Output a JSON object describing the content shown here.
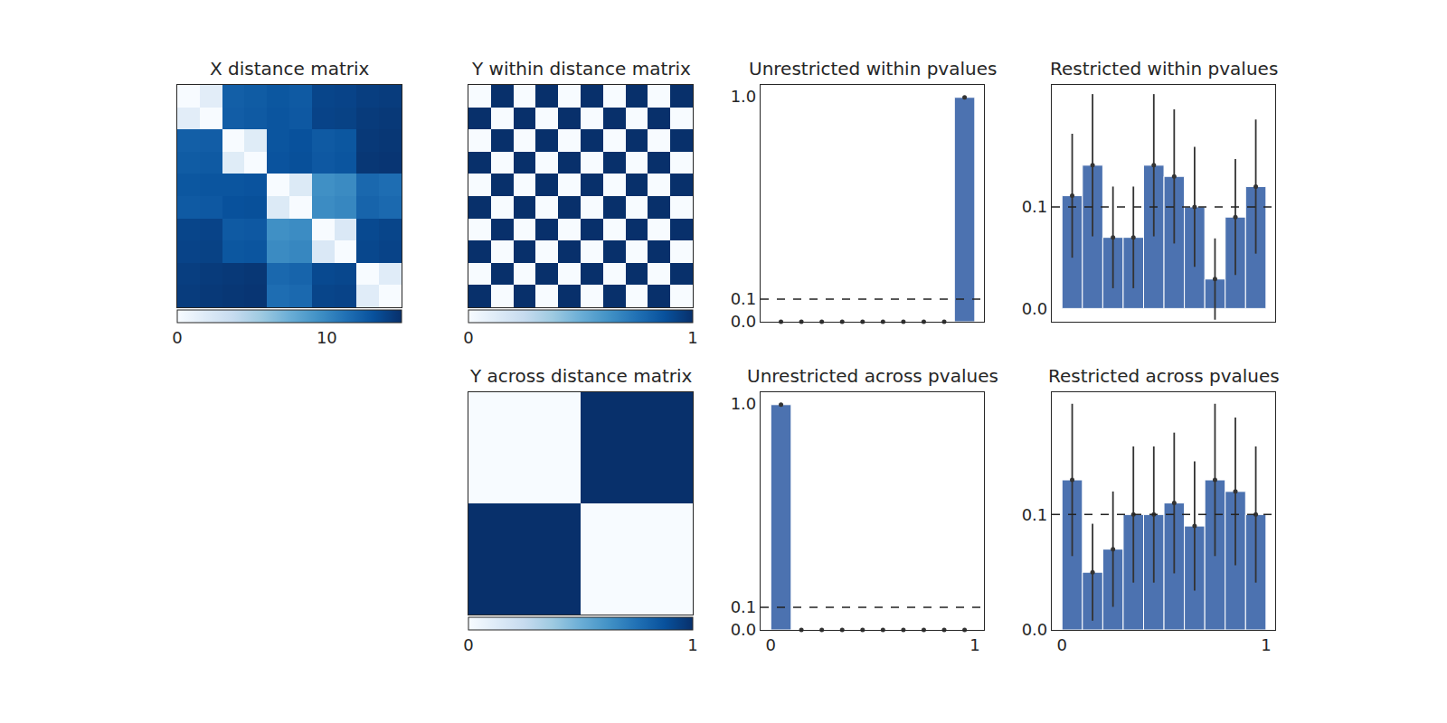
{
  "chart_data": [
    {
      "type": "heatmap",
      "title": "X distance matrix",
      "color": "Blues",
      "cells": [
        [
          0,
          1.6,
          12.3,
          12.5,
          12.8,
          12.6,
          13.8,
          13.9,
          14.2,
          14.3
        ],
        [
          1.6,
          0,
          12.4,
          12.6,
          12.9,
          12.7,
          13.9,
          14.0,
          14.4,
          14.5
        ],
        [
          12.3,
          12.4,
          0,
          1.8,
          12.9,
          13.1,
          12.6,
          12.8,
          14.5,
          14.6
        ],
        [
          12.5,
          12.6,
          1.8,
          0,
          13.0,
          13.2,
          12.7,
          12.9,
          14.6,
          14.7
        ],
        [
          12.8,
          12.9,
          12.9,
          13.0,
          0,
          2.0,
          9.5,
          9.8,
          11.8,
          11.5
        ],
        [
          12.6,
          12.7,
          13.1,
          13.2,
          2.0,
          0,
          9.7,
          10.0,
          12.0,
          11.7
        ],
        [
          13.8,
          13.9,
          12.6,
          12.7,
          9.5,
          9.7,
          0,
          2.2,
          13.6,
          13.8
        ],
        [
          13.9,
          14.0,
          12.8,
          12.9,
          9.8,
          10.0,
          2.2,
          0,
          13.7,
          13.9
        ],
        [
          14.2,
          14.4,
          14.5,
          14.6,
          11.8,
          12.0,
          13.6,
          13.7,
          0,
          1.7
        ],
        [
          14.3,
          14.5,
          14.6,
          14.7,
          11.5,
          11.7,
          13.8,
          13.9,
          1.7,
          0
        ]
      ],
      "color_range": [
        0,
        15
      ],
      "color_ticks": [
        0,
        10
      ],
      "tick_labels": false
    },
    {
      "type": "heatmap",
      "title": "Y within distance matrix",
      "color": "Blues",
      "cells": [
        [
          0,
          1,
          0,
          1,
          0,
          1,
          0,
          1,
          0,
          1
        ],
        [
          1,
          0,
          1,
          0,
          1,
          0,
          1,
          0,
          1,
          0
        ],
        [
          0,
          1,
          0,
          1,
          0,
          1,
          0,
          1,
          0,
          1
        ],
        [
          1,
          0,
          1,
          0,
          1,
          0,
          1,
          0,
          1,
          0
        ],
        [
          0,
          1,
          0,
          1,
          0,
          1,
          0,
          1,
          0,
          1
        ],
        [
          1,
          0,
          1,
          0,
          1,
          0,
          1,
          0,
          1,
          0
        ],
        [
          0,
          1,
          0,
          1,
          0,
          1,
          0,
          1,
          0,
          1
        ],
        [
          1,
          0,
          1,
          0,
          1,
          0,
          1,
          0,
          1,
          0
        ],
        [
          0,
          1,
          0,
          1,
          0,
          1,
          0,
          1,
          0,
          1
        ],
        [
          1,
          0,
          1,
          0,
          1,
          0,
          1,
          0,
          1,
          0
        ]
      ],
      "color_range": [
        0,
        1
      ],
      "color_ticks": [
        0,
        1
      ],
      "tick_labels": false
    },
    {
      "type": "bar",
      "title": "Unrestricted within pvalues",
      "color": "#4c72b0",
      "bins": [
        0,
        0.1,
        0.2,
        0.3,
        0.4,
        0.5,
        0.6,
        0.7,
        0.8,
        0.9,
        1.0
      ],
      "values": [
        0,
        0,
        0,
        0,
        0,
        0,
        0,
        0,
        0,
        0.995
      ],
      "xlim": [
        -0.05,
        1.045
      ],
      "ylim": [
        0,
        1.05
      ],
      "yticks": [
        {
          "value": 0,
          "label": "0.0"
        },
        0.1,
        {
          "value": 1,
          "label": "1.0"
        }
      ],
      "reference_line": 0.1,
      "tick_labels": "y"
    },
    {
      "type": "bar",
      "title": "Restricted within pvalues",
      "color": "#4c72b0",
      "bins": [
        0,
        0.1,
        0.2,
        0.3,
        0.4,
        0.5,
        0.6,
        0.7,
        0.8,
        0.9,
        1.0
      ],
      "values": [
        0.111,
        0.141,
        0.07,
        0.07,
        0.141,
        0.13,
        0.1,
        0.029,
        0.09,
        0.12
      ],
      "errors": [
        0.061,
        0.07,
        0.05,
        0.05,
        0.07,
        0.066,
        0.059,
        0.04,
        0.057,
        0.066
      ],
      "xlim": [
        -0.05,
        1.045
      ],
      "ylim": [
        -0.013,
        0.22
      ],
      "yticks": [
        {
          "value": 0,
          "label": "0.0"
        },
        0.1
      ],
      "reference_line": 0.1,
      "tick_labels": "y"
    },
    {
      "type": "heatmap",
      "title": "Y across distance matrix",
      "color": "Blues",
      "cells": [
        [
          0,
          0,
          0,
          0,
          0,
          1,
          1,
          1,
          1,
          1
        ],
        [
          0,
          0,
          0,
          0,
          0,
          1,
          1,
          1,
          1,
          1
        ],
        [
          0,
          0,
          0,
          0,
          0,
          1,
          1,
          1,
          1,
          1
        ],
        [
          0,
          0,
          0,
          0,
          0,
          1,
          1,
          1,
          1,
          1
        ],
        [
          0,
          0,
          0,
          0,
          0,
          1,
          1,
          1,
          1,
          1
        ],
        [
          1,
          1,
          1,
          1,
          1,
          0,
          0,
          0,
          0,
          0
        ],
        [
          1,
          1,
          1,
          1,
          1,
          0,
          0,
          0,
          0,
          0
        ],
        [
          1,
          1,
          1,
          1,
          1,
          0,
          0,
          0,
          0,
          0
        ],
        [
          1,
          1,
          1,
          1,
          1,
          0,
          0,
          0,
          0,
          0
        ],
        [
          1,
          1,
          1,
          1,
          1,
          0,
          0,
          0,
          0,
          0
        ]
      ],
      "color_range": [
        0,
        1
      ],
      "color_ticks": [
        0,
        1
      ],
      "tick_labels": false
    },
    {
      "type": "bar",
      "title": "Unrestricted across pvalues",
      "color": "#4c72b0",
      "bins": [
        0,
        0.1,
        0.2,
        0.3,
        0.4,
        0.5,
        0.6,
        0.7,
        0.8,
        0.9,
        1.0
      ],
      "values": [
        0.995,
        0,
        0,
        0,
        0,
        0,
        0,
        0,
        0,
        0
      ],
      "xlim": [
        -0.05,
        1.045
      ],
      "ylim": [
        0,
        1.05
      ],
      "xticks": [
        0,
        1
      ],
      "yticks": [
        {
          "value": 0,
          "label": "0.0"
        },
        0.1,
        {
          "value": 1,
          "label": "1.0"
        }
      ],
      "reference_line": 0.1
    },
    {
      "type": "bar",
      "title": "Restricted across pvalues",
      "color": "#4c72b0",
      "bins": [
        0,
        0.1,
        0.2,
        0.3,
        0.4,
        0.5,
        0.6,
        0.7,
        0.8,
        0.9,
        1.0
      ],
      "values": [
        0.13,
        0.05,
        0.07,
        0.1,
        0.1,
        0.11,
        0.09,
        0.13,
        0.12,
        0.1
      ],
      "errors": [
        0.066,
        0.042,
        0.05,
        0.059,
        0.059,
        0.061,
        0.056,
        0.066,
        0.064,
        0.059
      ],
      "xlim": [
        -0.05,
        1.045
      ],
      "ylim": [
        0,
        0.206
      ],
      "xticks": [
        0,
        1
      ],
      "yticks": [
        {
          "value": 0,
          "label": "0.0"
        },
        0.1
      ],
      "reference_line": 0.1
    }
  ]
}
